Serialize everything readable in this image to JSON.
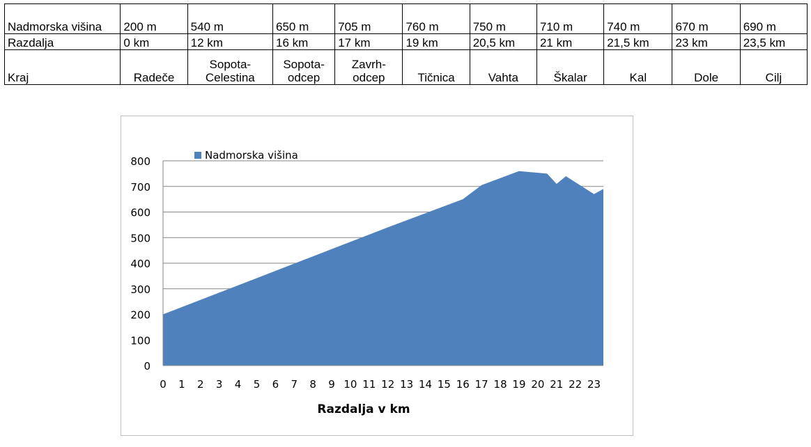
{
  "table": {
    "row_labels": {
      "elevation": "Nadmorska višina",
      "distance": "Razdalja",
      "place": "Kraj"
    },
    "columns": [
      {
        "elevation": "200 m",
        "distance": "0 km",
        "place": "Radeče"
      },
      {
        "elevation": "540 m",
        "distance": "12 km",
        "place": "Sopota-Celestina"
      },
      {
        "elevation": "650 m",
        "distance": "16 km",
        "place": "Sopota-odcep"
      },
      {
        "elevation": "705 m",
        "distance": "17 km",
        "place": "Zavrh-odcep"
      },
      {
        "elevation": "760 m",
        "distance": "19 km",
        "place": "Tičnica"
      },
      {
        "elevation": "750 m",
        "distance": "20,5 km",
        "place": "Vahta"
      },
      {
        "elevation": "710 m",
        "distance": "21 km",
        "place": "Škalar"
      },
      {
        "elevation": "740 m",
        "distance": "21,5 km",
        "place": "Kal"
      },
      {
        "elevation": "670 m",
        "distance": "23 km",
        "place": "Dole"
      },
      {
        "elevation": "690 m",
        "distance": "23,5 km",
        "place": "Cilj"
      }
    ]
  },
  "chart_data": {
    "type": "area",
    "xlabel": "Razdalja v km",
    "ylabel": "",
    "legend_position": "top-left",
    "grid": true,
    "xlim": [
      0,
      23.5
    ],
    "ylim": [
      0,
      800
    ],
    "yticks": [
      0,
      100,
      200,
      300,
      400,
      500,
      600,
      700,
      800
    ],
    "xticks": [
      0,
      1,
      2,
      3,
      4,
      5,
      6,
      7,
      8,
      9,
      10,
      11,
      12,
      13,
      14,
      15,
      16,
      17,
      18,
      19,
      20,
      21,
      22,
      23
    ],
    "series": [
      {
        "name": "Nadmorska višina",
        "color": "#4f81bd",
        "x": [
          0,
          12,
          16,
          17,
          19,
          20.5,
          21,
          21.5,
          23,
          23.5
        ],
        "y": [
          200,
          540,
          650,
          705,
          760,
          750,
          710,
          740,
          670,
          690
        ]
      }
    ]
  }
}
